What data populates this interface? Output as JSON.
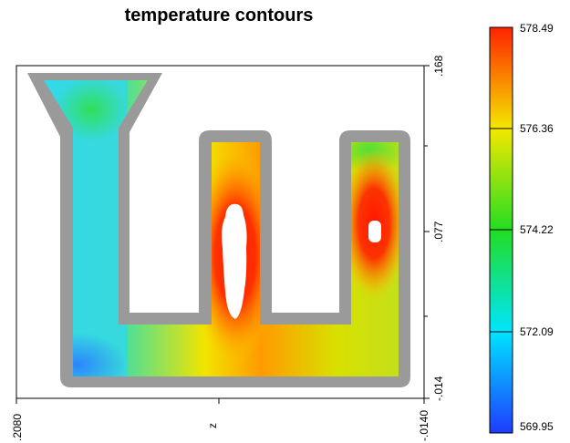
{
  "chart_data": {
    "type": "heatmap",
    "title": "temperature contours",
    "xlabel": "z",
    "x_ticks": [
      ".2080",
      "-.0140"
    ],
    "y_ticks": [
      ".168",
      ".077",
      "-.014"
    ],
    "colorbar": {
      "min": 569.95,
      "max": 578.49,
      "tick_labels": [
        "578.49",
        "576.36",
        "574.22",
        "572.09",
        "569.95"
      ],
      "colors": [
        "#1e3cff",
        "#00e5ff",
        "#22dd22",
        "#f4e800",
        "#ff2200"
      ]
    },
    "hot_regions": [
      {
        "location": "middle riser",
        "value_level": "max"
      },
      {
        "location": "right riser",
        "value_level": "max"
      }
    ],
    "cold_regions": [
      {
        "location": "bottom-left corner",
        "value_level": "min"
      }
    ]
  }
}
